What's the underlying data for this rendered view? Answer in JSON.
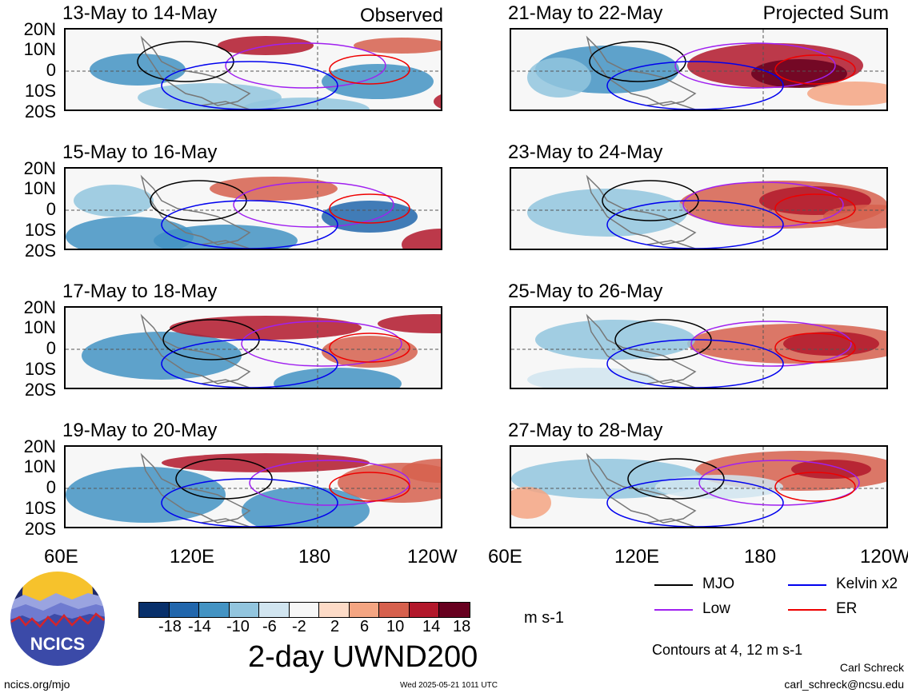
{
  "observed_label": "Observed",
  "projected_label": "Projected Sum",
  "panels": [
    {
      "title": "13-May to 14-May"
    },
    {
      "title": "21-May to 22-May"
    },
    {
      "title": "15-May to 16-May"
    },
    {
      "title": "23-May to 24-May"
    },
    {
      "title": "17-May to 18-May"
    },
    {
      "title": "25-May to 26-May"
    },
    {
      "title": "19-May to 20-May"
    },
    {
      "title": "27-May to 28-May"
    }
  ],
  "lat_labels": [
    "20N",
    "10N",
    "0",
    "10S",
    "20S"
  ],
  "lon_labels": [
    "60E",
    "120E",
    "180",
    "120W"
  ],
  "colorbar": {
    "colors": [
      "#08306b",
      "#2166ac",
      "#4393c3",
      "#92c5de",
      "#d1e5f0",
      "#f7f7f7",
      "#fddbc7",
      "#f4a582",
      "#d6604d",
      "#b2182b",
      "#67001f"
    ],
    "ticks": [
      "-18",
      "-14",
      "-10",
      "-6",
      "-2",
      "2",
      "6",
      "10",
      "14",
      "18"
    ],
    "units": "m s-1"
  },
  "chart_title": "2-day UWND200",
  "legend": {
    "items": [
      {
        "label": "MJO",
        "color": "#000000"
      },
      {
        "label": "Kelvin x2",
        "color": "#0000ee"
      },
      {
        "label": "Low",
        "color": "#a020f0"
      },
      {
        "label": "ER",
        "color": "#ee0000"
      }
    ],
    "contours_note": "Contours at 4, 12 m s-1"
  },
  "logo_text": "NCICS",
  "footer": {
    "site": "ncics.org/mjo",
    "timestamp": "Wed 2025-05-21 1011 UTC",
    "author": "Carl Schreck",
    "email": "carl_schreck@ncsu.edu"
  }
}
